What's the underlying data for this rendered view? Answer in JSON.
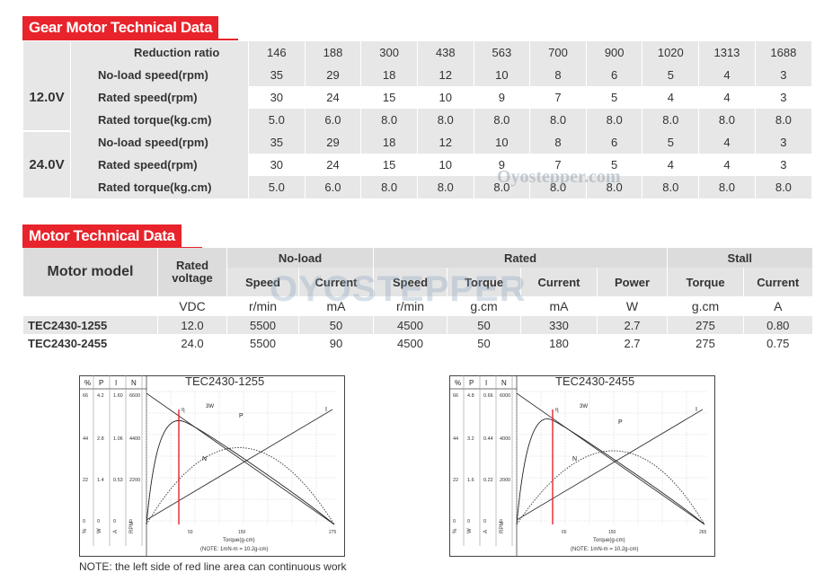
{
  "colors": {
    "accent": "#e8232b",
    "row_gray": "#e7e7e7",
    "header_gray": "#dcdcdc"
  },
  "gear": {
    "title": "Gear Motor Technical Data",
    "ratio_label": "Reduction ratio",
    "ratios": [
      "146",
      "188",
      "300",
      "438",
      "563",
      "700",
      "900",
      "1020",
      "1313",
      "1688"
    ],
    "groups": [
      {
        "voltage": "12.0V",
        "rows": [
          {
            "label": "No-load speed(rpm)",
            "values": [
              "35",
              "29",
              "18",
              "12",
              "10",
              "8",
              "6",
              "5",
              "4",
              "3"
            ]
          },
          {
            "label": "Rated speed(rpm)",
            "values": [
              "30",
              "24",
              "15",
              "10",
              "9",
              "7",
              "5",
              "4",
              "4",
              "3"
            ]
          },
          {
            "label": "Rated torque(kg.cm)",
            "values": [
              "5.0",
              "6.0",
              "8.0",
              "8.0",
              "8.0",
              "8.0",
              "8.0",
              "8.0",
              "8.0",
              "8.0"
            ]
          }
        ]
      },
      {
        "voltage": "24.0V",
        "rows": [
          {
            "label": "No-load speed(rpm)",
            "values": [
              "35",
              "29",
              "18",
              "12",
              "10",
              "8",
              "6",
              "5",
              "4",
              "3"
            ]
          },
          {
            "label": "Rated speed(rpm)",
            "values": [
              "30",
              "24",
              "15",
              "10",
              "9",
              "7",
              "5",
              "4",
              "4",
              "3"
            ]
          },
          {
            "label": "Rated torque(kg.cm)",
            "values": [
              "5.0",
              "6.0",
              "8.0",
              "8.0",
              "8.0",
              "8.0",
              "8.0",
              "8.0",
              "8.0",
              "8.0"
            ]
          }
        ]
      }
    ]
  },
  "motor": {
    "title": "Motor Technical Data",
    "model_header": "Motor model",
    "rated_voltage_header": "Rated voltage",
    "groups": {
      "noload": "No-load",
      "rated": "Rated",
      "stall": "Stall"
    },
    "sub": [
      "Speed",
      "Current",
      "Speed",
      "Torque",
      "Current",
      "Power",
      "Torque",
      "Current"
    ],
    "units": [
      "VDC",
      "r/min",
      "mA",
      "r/min",
      "g.cm",
      "mA",
      "W",
      "g.cm",
      "A"
    ],
    "rows": [
      {
        "model": "TEC2430-1255",
        "values": [
          "12.0",
          "5500",
          "50",
          "4500",
          "50",
          "330",
          "2.7",
          "275",
          "0.80"
        ]
      },
      {
        "model": "TEC2430-2455",
        "values": [
          "24.0",
          "5500",
          "90",
          "4500",
          "50",
          "180",
          "2.7",
          "275",
          "0.75"
        ]
      }
    ]
  },
  "watermarks": {
    "site": "Oyostepper.com",
    "logo": "OYOSTEPPER",
    "small": "Oyostepper.com"
  },
  "charts": [
    {
      "title": "TEC2430-1255",
      "header": [
        "%",
        "P",
        "I",
        "N"
      ],
      "left_scale": [
        [
          "66",
          "4.2",
          "1.60",
          "6600"
        ],
        [
          "44",
          "2.8",
          "1.06",
          "4400"
        ],
        [
          "22",
          "1.4",
          "0.53",
          "2200"
        ],
        [
          "0",
          "0",
          "0",
          "0"
        ]
      ],
      "axis_units": [
        "%",
        "W",
        "A",
        "RPM"
      ],
      "x_ticks": [
        "50",
        "150",
        "275"
      ],
      "xlabel": "Torque(g-cm)",
      "note": "(NOTE: 1mN-m = 10.2g-cm)",
      "curve_labels": {
        "eta": "η",
        "p": "P",
        "i": "I",
        "n": "N",
        "power": "3W"
      }
    },
    {
      "title": "TEC2430-2455",
      "header": [
        "%",
        "P",
        "I",
        "N"
      ],
      "left_scale": [
        [
          "66",
          "4.8",
          "0.66",
          "6000"
        ],
        [
          "44",
          "3.2",
          "0.44",
          "4000"
        ],
        [
          "22",
          "1.6",
          "0.22",
          "2000"
        ],
        [
          "0",
          "0",
          "0",
          "0"
        ]
      ],
      "axis_units": [
        "%",
        "W",
        "A",
        "RPM"
      ],
      "x_ticks": [
        "65",
        "150",
        "265"
      ],
      "xlabel": "Torque(g-cm)",
      "note": "(NOTE: 1mN-m = 10.2g-cm)",
      "curve_labels": {
        "eta": "η",
        "p": "P",
        "i": "I",
        "n": "N",
        "power": "3W"
      }
    }
  ],
  "footnote": "NOTE: the left side of red line area can continuous work"
}
